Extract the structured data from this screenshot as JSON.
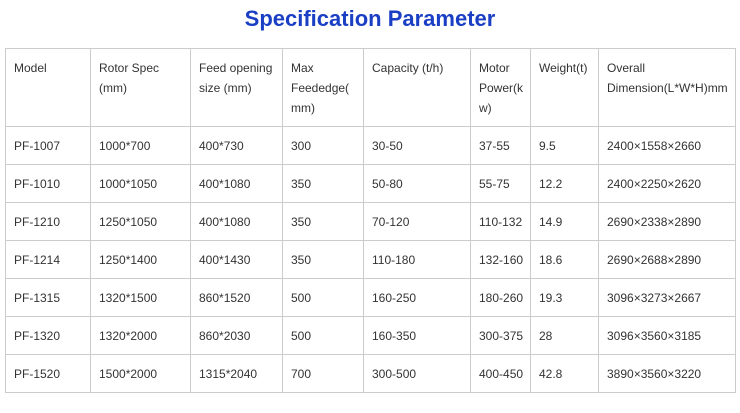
{
  "title": "Specification Parameter",
  "table": {
    "header": [
      "Model",
      "Rotor Spec (mm)",
      "Feed opening size (mm)",
      "Max Feededge(mm)",
      "Capacity (t/h)",
      "Motor Power(kw)",
      "Weight(t)",
      "Overall Dimension(L*W*H)mm"
    ],
    "rows": [
      [
        "PF-1007",
        "1000*700",
        "400*730",
        "300",
        "30-50",
        "37-55",
        "9.5",
        "2400×1558×2660"
      ],
      [
        "PF-1010",
        "1000*1050",
        "400*1080",
        "350",
        "50-80",
        "55-75",
        "12.2",
        "2400×2250×2620"
      ],
      [
        "PF-1210",
        "1250*1050",
        "400*1080",
        "350",
        "70-120",
        "110-132",
        "14.9",
        "2690×2338×2890"
      ],
      [
        "PF-1214",
        "1250*1400",
        "400*1430",
        "350",
        "110-180",
        "132-160",
        "18.6",
        "2690×2688×2890"
      ],
      [
        "PF-1315",
        "1320*1500",
        "860*1520",
        "500",
        "160-250",
        "180-260",
        "19.3",
        "3096×3273×2667"
      ],
      [
        "PF-1320",
        "1320*2000",
        "860*2030",
        "500",
        "160-350",
        "300-375",
        "28",
        "3096×3560×3185"
      ],
      [
        "PF-1520",
        "1500*2000",
        "1315*2040",
        "700",
        "300-500",
        "400-450",
        "42.8",
        "3890×3560×3220"
      ]
    ]
  }
}
